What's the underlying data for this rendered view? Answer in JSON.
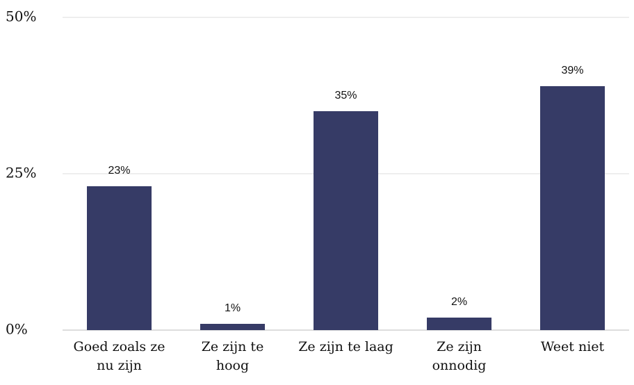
{
  "chart_data": {
    "type": "bar",
    "categories": [
      "Goed zoals ze nu zijn",
      "Ze zijn te hoog",
      "Ze zijn te laag",
      "Ze zijn onnodig",
      "Weet niet"
    ],
    "values": [
      23,
      1,
      35,
      2,
      39
    ],
    "value_labels": [
      "23%",
      "1%",
      "35%",
      "2%",
      "39%"
    ],
    "color": "#363b66",
    "ylim": [
      0,
      50
    ],
    "yticks": [
      {
        "value": 0,
        "label": "0%"
      },
      {
        "value": 25,
        "label": "25%"
      },
      {
        "value": 50,
        "label": "50%"
      }
    ],
    "grid": true
  }
}
